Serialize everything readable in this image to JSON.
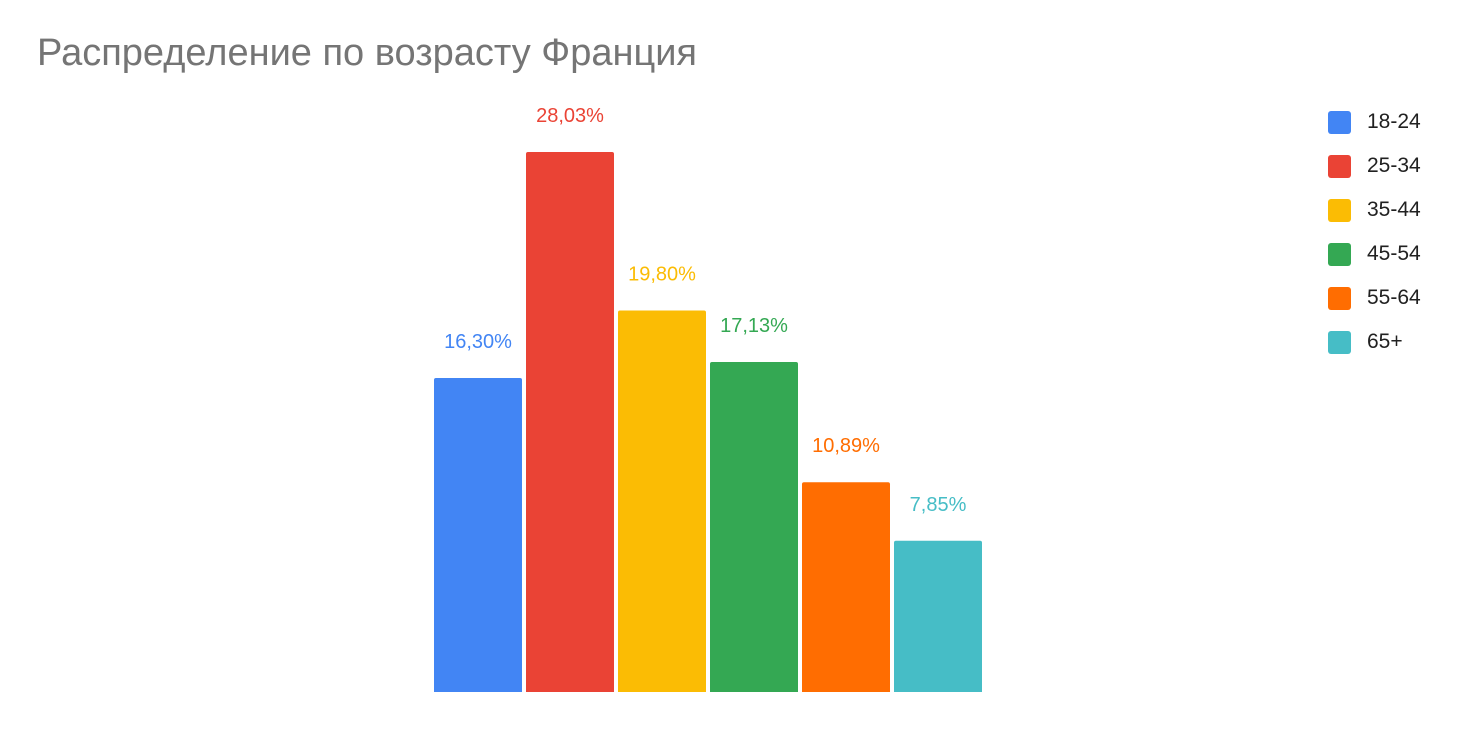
{
  "title": "Распределение по возрасту Франция",
  "chart_data": {
    "type": "bar",
    "title": "Распределение по возрасту Франция",
    "categories": [
      "18-24",
      "25-34",
      "35-44",
      "45-54",
      "55-64",
      "65+"
    ],
    "values": [
      16.3,
      28.03,
      19.8,
      17.13,
      10.89,
      7.85
    ],
    "data_labels": [
      "16,30%",
      "28,03%",
      "19,80%",
      "17,13%",
      "10,89%",
      "7,85%"
    ],
    "colors": [
      "#4285f4",
      "#ea4335",
      "#fbbc04",
      "#34a853",
      "#ff6d01",
      "#46bdc6"
    ],
    "ylim": [
      0,
      28.03
    ],
    "grid": false,
    "legend_position": "right",
    "xlabel": "",
    "ylabel": ""
  },
  "legend": {
    "items": [
      {
        "label": "18-24",
        "color": "#4285f4"
      },
      {
        "label": "25-34",
        "color": "#ea4335"
      },
      {
        "label": "35-44",
        "color": "#fbbc04"
      },
      {
        "label": "45-54",
        "color": "#34a853"
      },
      {
        "label": "55-64",
        "color": "#ff6d01"
      },
      {
        "label": "65+",
        "color": "#46bdc6"
      }
    ]
  }
}
